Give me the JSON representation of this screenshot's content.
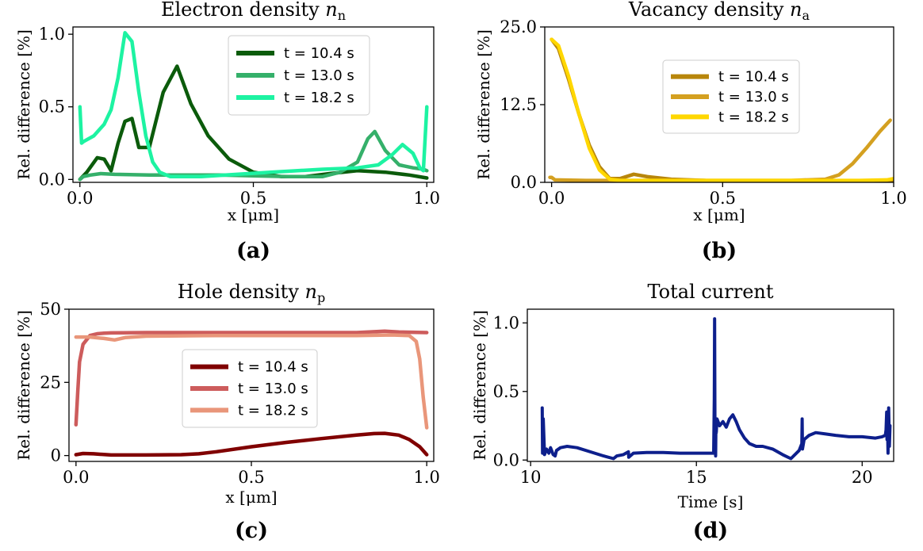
{
  "chart_data": [
    {
      "id": "a",
      "type": "line",
      "title": "Electron density",
      "title_math": {
        "var": "n",
        "sub": "n"
      },
      "xlabel": "x [μm]",
      "ylabel": "Rel. difference [%]",
      "panel_label": "(a)",
      "xlim": [
        -0.02,
        1.02
      ],
      "ylim": [
        -0.02,
        1.05
      ],
      "xticks": [
        0.0,
        0.5,
        1.0
      ],
      "xtick_labels": [
        "0.0",
        "0.5",
        "1.0"
      ],
      "yticks": [
        0.0,
        0.5,
        1.0
      ],
      "ytick_labels": [
        "0.0",
        "0.5",
        "1.0"
      ],
      "legend_position": "upper-center",
      "series": [
        {
          "name": "t = 10.4 s",
          "color": "#0b5b0b",
          "x": [
            0,
            0.02,
            0.05,
            0.07,
            0.09,
            0.11,
            0.13,
            0.15,
            0.17,
            0.2,
            0.24,
            0.28,
            0.32,
            0.37,
            0.43,
            0.5,
            0.58,
            0.65,
            0.72,
            0.8,
            0.88,
            0.95,
            1.0
          ],
          "y": [
            0.0,
            0.05,
            0.15,
            0.14,
            0.06,
            0.25,
            0.4,
            0.42,
            0.22,
            0.22,
            0.6,
            0.78,
            0.52,
            0.3,
            0.14,
            0.05,
            0.02,
            0.02,
            0.04,
            0.06,
            0.05,
            0.03,
            0.01
          ]
        },
        {
          "name": "t = 13.0 s",
          "color": "#35b06a",
          "x": [
            0,
            0.01,
            0.03,
            0.06,
            0.1,
            0.2,
            0.3,
            0.4,
            0.5,
            0.6,
            0.7,
            0.75,
            0.8,
            0.83,
            0.85,
            0.88,
            0.92,
            0.96,
            0.99,
            1.0
          ],
          "y": [
            0.0,
            0.02,
            0.03,
            0.04,
            0.035,
            0.03,
            0.03,
            0.03,
            0.025,
            0.02,
            0.02,
            0.05,
            0.12,
            0.28,
            0.33,
            0.2,
            0.1,
            0.08,
            0.07,
            0.06
          ]
        },
        {
          "name": "t = 18.2 s",
          "color": "#1df3a2",
          "x": [
            0,
            0.005,
            0.01,
            0.04,
            0.07,
            0.09,
            0.11,
            0.13,
            0.15,
            0.17,
            0.19,
            0.21,
            0.23,
            0.26,
            0.3,
            0.35,
            0.42,
            0.55,
            0.7,
            0.8,
            0.86,
            0.9,
            0.93,
            0.96,
            0.98,
            0.99,
            1.0
          ],
          "y": [
            0.5,
            0.25,
            0.26,
            0.3,
            0.38,
            0.48,
            0.7,
            1.01,
            0.95,
            0.6,
            0.3,
            0.12,
            0.05,
            0.02,
            0.02,
            0.02,
            0.03,
            0.05,
            0.07,
            0.08,
            0.1,
            0.17,
            0.24,
            0.18,
            0.08,
            0.06,
            0.5
          ]
        }
      ]
    },
    {
      "id": "b",
      "type": "line",
      "title": "Vacancy density",
      "title_math": {
        "var": "n",
        "sub": "a"
      },
      "xlabel": "x [μm]",
      "ylabel": "Rel. difference [%]",
      "panel_label": "(b)",
      "xlim": [
        -0.02,
        1.0
      ],
      "ylim": [
        0,
        25
      ],
      "xticks": [
        0.0,
        0.5,
        1.0
      ],
      "xtick_labels": [
        "0.0",
        "0.5",
        "1.0"
      ],
      "yticks": [
        0.0,
        12.5,
        25.0
      ],
      "ytick_labels": [
        "0.0",
        "12.5",
        "25.0"
      ],
      "legend_position": "center-right",
      "series": [
        {
          "name": "t = 10.4 s",
          "color": "#b8860b",
          "x": [
            0,
            0.02,
            0.05,
            0.08,
            0.11,
            0.14,
            0.17,
            0.2,
            0.24,
            0.28,
            0.35,
            0.45,
            0.6,
            0.8,
            1.0
          ],
          "y": [
            23.0,
            21.5,
            16.5,
            11.0,
            6.0,
            2.5,
            0.6,
            0.6,
            1.3,
            0.9,
            0.5,
            0.3,
            0.2,
            0.2,
            0.2
          ]
        },
        {
          "name": "t = 13.0 s",
          "color": "#d4a020",
          "x": [
            -0.005,
            0.0,
            0.01,
            0.1,
            0.3,
            0.5,
            0.7,
            0.8,
            0.84,
            0.88,
            0.92,
            0.96,
            0.99
          ],
          "y": [
            0.8,
            0.8,
            0.4,
            0.3,
            0.3,
            0.3,
            0.3,
            0.5,
            1.2,
            3.0,
            5.5,
            8.2,
            10.0
          ]
        },
        {
          "name": "t = 18.2 s",
          "color": "#ffd700",
          "x": [
            0,
            0.02,
            0.05,
            0.08,
            0.11,
            0.14,
            0.17,
            0.2,
            0.3,
            0.5,
            0.7,
            0.9,
            0.98,
            1.0
          ],
          "y": [
            23.0,
            22.0,
            17.0,
            11.0,
            5.5,
            2.0,
            0.5,
            0.3,
            0.3,
            0.3,
            0.3,
            0.3,
            0.4,
            0.6
          ]
        }
      ]
    },
    {
      "id": "c",
      "type": "line",
      "title": "Hole density",
      "title_math": {
        "var": "n",
        "sub": "p"
      },
      "xlabel": "x [μm]",
      "ylabel": "Rel. difference [%]",
      "panel_label": "(c)",
      "xlim": [
        -0.02,
        1.02
      ],
      "ylim": [
        -2,
        50
      ],
      "xticks": [
        0.0,
        0.5,
        1.0
      ],
      "xtick_labels": [
        "0.0",
        "0.5",
        "1.0"
      ],
      "yticks": [
        0,
        25,
        50
      ],
      "ytick_labels": [
        "0",
        "25",
        "50"
      ],
      "legend_position": "center",
      "series": [
        {
          "name": "t = 10.4 s",
          "color": "#800000",
          "x": [
            0,
            0.02,
            0.05,
            0.1,
            0.2,
            0.3,
            0.35,
            0.4,
            0.5,
            0.6,
            0.7,
            0.8,
            0.85,
            0.88,
            0.92,
            0.95,
            0.98,
            1.0
          ],
          "y": [
            0.3,
            0.7,
            0.6,
            0.2,
            0.2,
            0.3,
            0.6,
            1.3,
            3.0,
            4.5,
            5.8,
            7.0,
            7.5,
            7.6,
            7.0,
            5.5,
            3.0,
            0.3
          ]
        },
        {
          "name": "t = 13.0 s",
          "color": "#cd5c5c",
          "x": [
            0,
            0.005,
            0.01,
            0.02,
            0.04,
            0.06,
            0.08,
            0.1,
            0.2,
            0.4,
            0.6,
            0.8,
            0.88,
            0.92,
            1.0
          ],
          "y": [
            10.5,
            22.0,
            32.0,
            38.0,
            41.0,
            41.6,
            41.8,
            41.9,
            42.0,
            42.0,
            42.0,
            42.0,
            42.5,
            42.2,
            42.0
          ]
        },
        {
          "name": "t = 18.2 s",
          "color": "#e9967a",
          "x": [
            0,
            0.04,
            0.08,
            0.11,
            0.14,
            0.2,
            0.4,
            0.6,
            0.8,
            0.9,
            0.95,
            0.97,
            0.98,
            0.99,
            1.0
          ],
          "y": [
            40.5,
            40.5,
            40.0,
            39.5,
            40.3,
            40.8,
            41.0,
            41.0,
            41.0,
            41.2,
            41.0,
            39.0,
            33.0,
            20.0,
            9.5
          ]
        }
      ]
    },
    {
      "id": "d",
      "type": "line",
      "title": "Total current",
      "xlabel": "Time [s]",
      "ylabel": "Rel. difference [%]",
      "panel_label": "(d)",
      "xlim": [
        9.9,
        20.95
      ],
      "ylim": [
        -0.01,
        1.1
      ],
      "xticks": [
        10,
        15,
        20
      ],
      "xtick_labels": [
        "10",
        "15",
        "20"
      ],
      "yticks": [
        0.0,
        0.5,
        1.0
      ],
      "ytick_labels": [
        "0.0",
        "0.5",
        "1.0"
      ],
      "series": [
        {
          "name": "",
          "color": "#0d1f8c",
          "x": [
            10.35,
            10.36,
            10.38,
            10.42,
            10.48,
            10.55,
            10.6,
            10.68,
            10.74,
            10.78,
            10.9,
            11.1,
            11.4,
            11.8,
            12.2,
            12.5,
            12.6,
            12.8,
            12.95,
            12.96,
            13.1,
            13.5,
            14.0,
            14.5,
            15.0,
            15.4,
            15.52,
            15.54,
            15.55,
            15.56,
            15.57,
            15.58,
            15.59,
            15.6,
            15.62,
            15.7,
            15.8,
            15.9,
            16.0,
            16.1,
            16.2,
            16.3,
            16.45,
            16.6,
            16.8,
            17.0,
            17.3,
            17.6,
            17.85,
            18.1,
            18.18,
            18.19,
            18.2,
            18.25,
            18.4,
            18.6,
            18.9,
            19.2,
            19.6,
            20.0,
            20.4,
            20.6,
            20.7,
            20.72,
            20.74,
            20.75,
            20.76,
            20.78,
            20.8,
            20.82,
            20.84
          ],
          "y": [
            0.38,
            0.05,
            0.3,
            0.04,
            0.08,
            0.05,
            0.09,
            0.04,
            0.03,
            0.07,
            0.09,
            0.1,
            0.09,
            0.06,
            0.03,
            0.01,
            0.03,
            0.04,
            0.06,
            0.02,
            0.05,
            0.055,
            0.055,
            0.05,
            0.05,
            0.05,
            0.05,
            0.45,
            1.03,
            0.3,
            0.15,
            0.03,
            0.28,
            0.2,
            0.3,
            0.25,
            0.28,
            0.24,
            0.3,
            0.33,
            0.28,
            0.22,
            0.16,
            0.12,
            0.1,
            0.1,
            0.08,
            0.04,
            0.01,
            0.07,
            0.12,
            0.3,
            0.08,
            0.15,
            0.18,
            0.2,
            0.19,
            0.18,
            0.17,
            0.17,
            0.16,
            0.17,
            0.18,
            0.22,
            0.35,
            0.15,
            0.3,
            0.05,
            0.38,
            0.1,
            0.25
          ]
        }
      ]
    }
  ]
}
